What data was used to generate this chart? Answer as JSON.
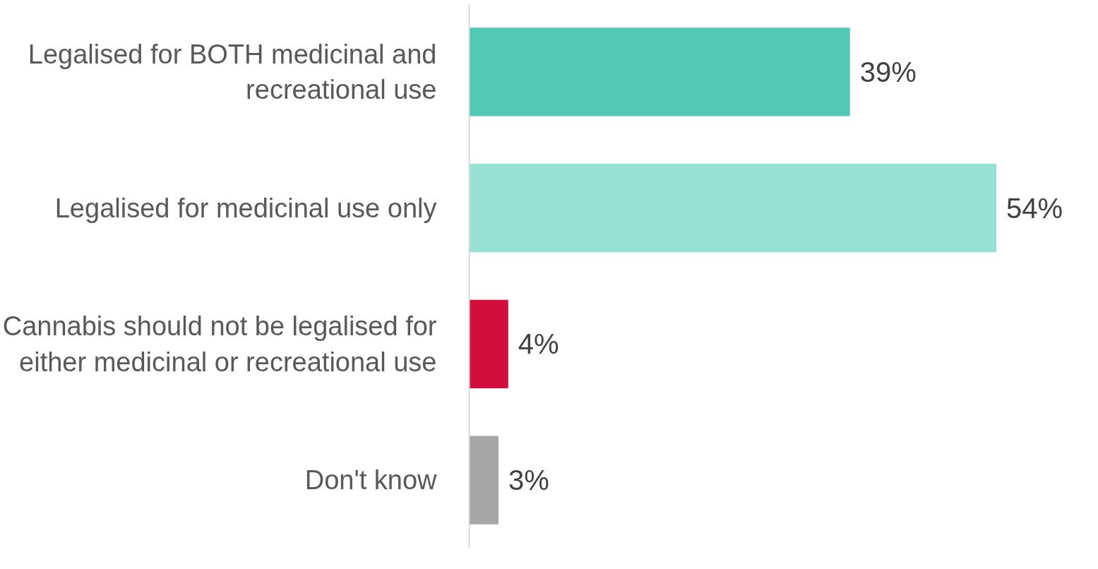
{
  "chart_data": {
    "type": "bar",
    "orientation": "horizontal",
    "categories": [
      "Legalised for BOTH medicinal and recreational use",
      "Legalised for medicinal use only",
      "Cannabis should not be legalised for either medicinal or recreational use",
      "Don't know"
    ],
    "values": [
      39,
      54,
      4,
      3
    ],
    "colors": [
      "#52c9b4",
      "#98e1d5",
      "#d20f3c",
      "#a6a6a6"
    ],
    "value_labels": [
      "39%",
      "54%",
      "4%",
      "3%"
    ],
    "grid": false,
    "tick_labels": "y"
  }
}
